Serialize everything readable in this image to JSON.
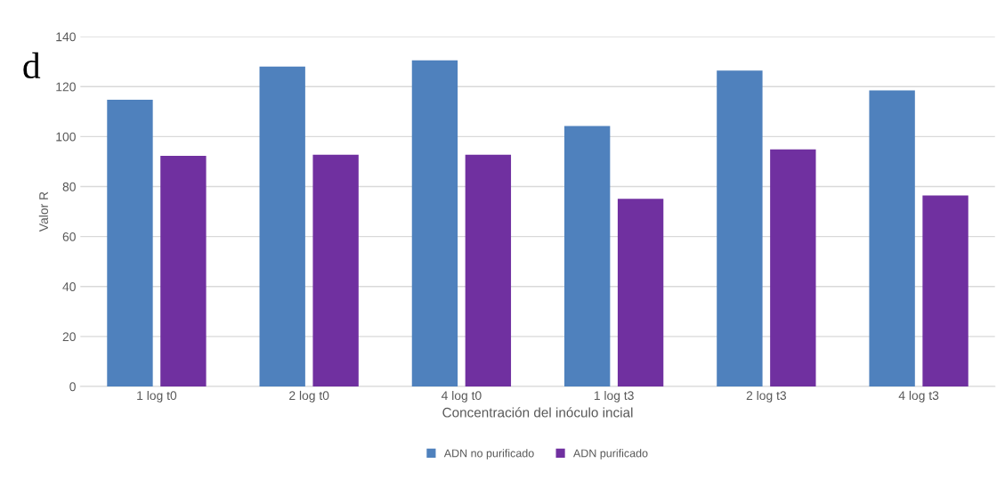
{
  "chart_data": {
    "type": "bar",
    "xlabel": "Concentración del inóculo incial",
    "ylabel": "Valor R",
    "categories": [
      "1 log t0",
      "2 log t0",
      "4 log t0",
      "1 log t3",
      "2 log t3",
      "4 log t3"
    ],
    "series": [
      {
        "name": "ADN no purificado",
        "color": "#4f81bd",
        "values": [
          114.7,
          128.0,
          130.5,
          104.2,
          126.4,
          118.5
        ]
      },
      {
        "name": "ADN purificado",
        "color": "#7030a0",
        "values": [
          92.3,
          92.7,
          92.7,
          75.1,
          94.9,
          76.4
        ]
      }
    ],
    "ylim": [
      0,
      140
    ],
    "yticks": [
      0,
      20,
      40,
      60,
      80,
      100,
      120,
      140
    ],
    "grid": "y",
    "legend": "bottom",
    "annotations": [
      "d"
    ]
  }
}
